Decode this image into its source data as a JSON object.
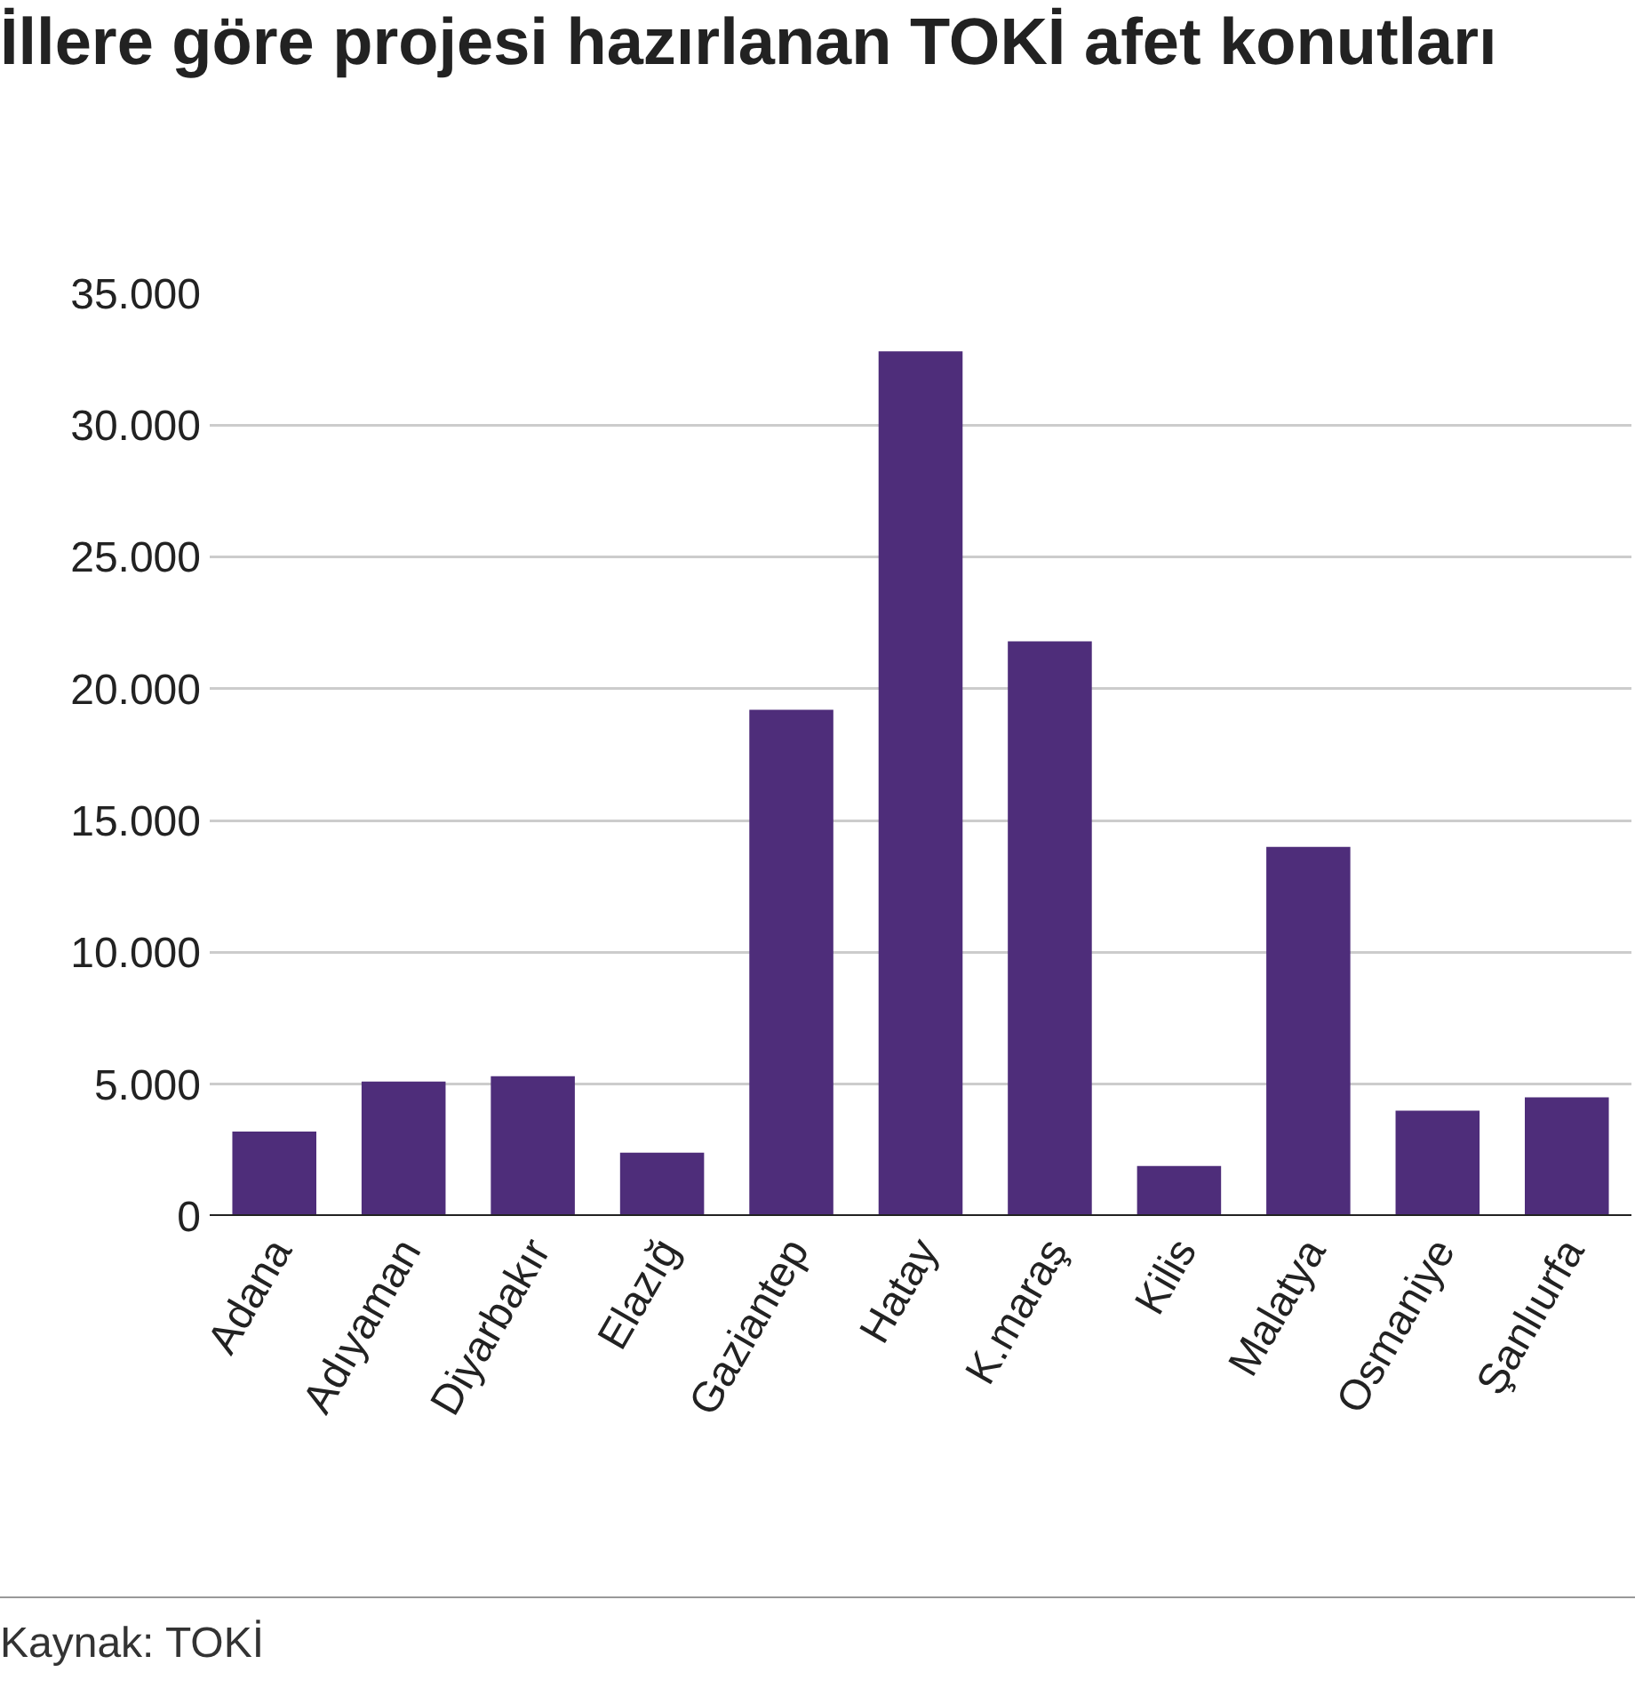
{
  "chart_data": {
    "type": "bar",
    "title": "İllere göre projesi hazırlanan TOKİ afet konutları",
    "categories": [
      "Adana",
      "Adıyaman",
      "Diyarbakır",
      "Elazığ",
      "Gaziantep",
      "Hatay",
      "K.maraş",
      "Kilis",
      "Malatya",
      "Osmaniye",
      "Şanlıurfa"
    ],
    "values": [
      3200,
      5100,
      5300,
      2400,
      19200,
      32800,
      21800,
      1900,
      14000,
      4000,
      4500
    ],
    "color": "#4e2d7a",
    "ylim": [
      0,
      35000
    ],
    "yticks": [
      0,
      {
        "value": 5000,
        "label": "5.000"
      },
      {
        "value": 10000,
        "label": "10.000"
      },
      {
        "value": 15000,
        "label": "15.000"
      },
      {
        "value": 20000,
        "label": "20.000"
      },
      {
        "value": 25000,
        "label": "25.000"
      },
      {
        "value": 30000,
        "label": "30.000"
      },
      {
        "value": 35000,
        "label": "35.000"
      }
    ],
    "grid": "y",
    "annotations": [
      "Kaynak: TOKİ"
    ]
  }
}
